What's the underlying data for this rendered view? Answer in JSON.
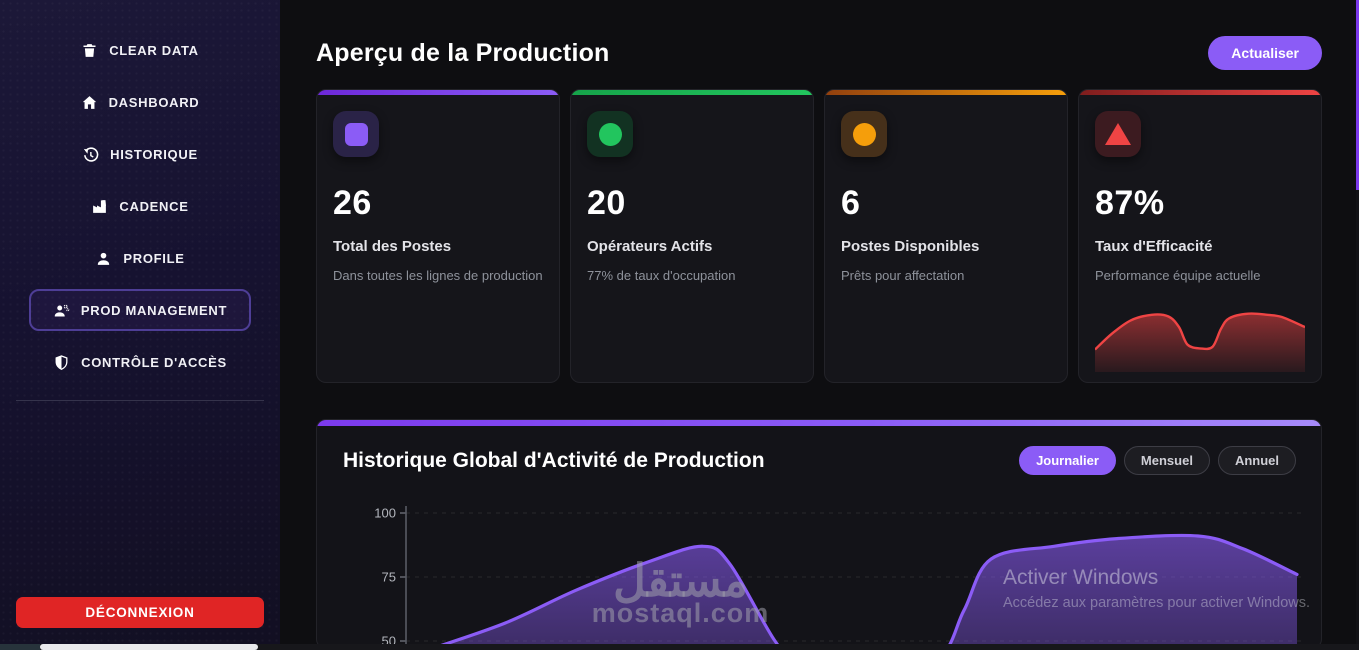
{
  "sidebar": {
    "items": [
      {
        "label": "CLEAR DATA",
        "icon": "trash-icon"
      },
      {
        "label": "DASHBOARD",
        "icon": "home-icon"
      },
      {
        "label": "HISTORIQUE",
        "icon": "history-icon"
      },
      {
        "label": "CADENCE",
        "icon": "factory-icon"
      },
      {
        "label": "PROFILE",
        "icon": "user-icon"
      },
      {
        "label": "PROD MANAGEMENT",
        "icon": "users-gear-icon",
        "active": true
      },
      {
        "label": "CONTRÔLE D'ACCÈS",
        "icon": "shield-icon"
      }
    ],
    "logout_label": "DÉCONNEXION"
  },
  "header": {
    "title": "Aperçu de la Production",
    "refresh_label": "Actualiser"
  },
  "stat_cards": [
    {
      "value": "26",
      "title": "Total des Postes",
      "subtitle": "Dans toutes les lignes de production",
      "accent": "#8b5cf6",
      "accent2": "#6d28d9",
      "tile_bg": "#2a2347",
      "glyph": "rounded-square"
    },
    {
      "value": "20",
      "title": "Opérateurs Actifs",
      "subtitle": "77% de taux d'occupation",
      "accent": "#22c55e",
      "accent2": "#16a34a",
      "tile_bg": "#123222",
      "glyph": "circle"
    },
    {
      "value": "6",
      "title": "Postes Disponibles",
      "subtitle": "Prêts pour affectation",
      "accent": "#f59e0b",
      "accent2": "#92400e",
      "tile_bg": "#46301a",
      "glyph": "circle"
    },
    {
      "value": "87%",
      "title": "Taux d'Efficacité",
      "subtitle": "Performance équipe actuelle",
      "accent": "#ef4444",
      "accent2": "#7f1d1d",
      "tile_bg": "#3c1b20",
      "glyph": "triangle"
    }
  ],
  "history": {
    "title": "Historique Global d'Activité de Production",
    "filters": [
      "Journalier",
      "Mensuel",
      "Annuel"
    ],
    "active_filter": "Journalier"
  },
  "chart_data": [
    {
      "id": "activity-area",
      "type": "area",
      "title": "Historique Global d'Activité de Production",
      "period_options": [
        "Journalier",
        "Mensuel",
        "Annuel"
      ],
      "active_period": "Journalier",
      "yticks": [
        100,
        75,
        50
      ],
      "ylim_visible": [
        50,
        100
      ],
      "grid": "dashed-horizontal",
      "legend": "none",
      "line_color": "#8b5cf6",
      "fill_color": "rgba(139,92,246,0.45)",
      "x_pct": [
        2,
        11,
        19,
        27,
        33,
        36,
        41,
        44,
        51,
        59,
        62,
        65,
        72,
        79,
        88,
        93,
        99
      ],
      "values": [
        46,
        57,
        70,
        81,
        87,
        80,
        50,
        40,
        38,
        43,
        62,
        82,
        87,
        90,
        91,
        86,
        76
      ]
    },
    {
      "id": "efficiency-sparkline",
      "type": "area",
      "line_color": "#ef4444",
      "fill_color": "rgba(239,68,68,0.45)",
      "x_pct": [
        0,
        8,
        17,
        27,
        35,
        40,
        44,
        50,
        56,
        60,
        64,
        73,
        82,
        89,
        100
      ],
      "values": [
        33,
        61,
        85,
        95,
        92,
        73,
        42,
        35,
        38,
        70,
        89,
        97,
        95,
        91,
        73
      ]
    }
  ],
  "watermark": {
    "arabic": "مستقل",
    "domain": "mostaql.com"
  },
  "windows_overlay": {
    "title": "Activer Windows",
    "subtitle": "Accédez aux paramètres pour activer Windows."
  },
  "colors": {
    "accent_purple": "#8b5cf6",
    "danger_red": "#e02525",
    "sidebar_bg": "#171330",
    "card_bg": "#15151a",
    "page_bg": "#0e0e11"
  }
}
